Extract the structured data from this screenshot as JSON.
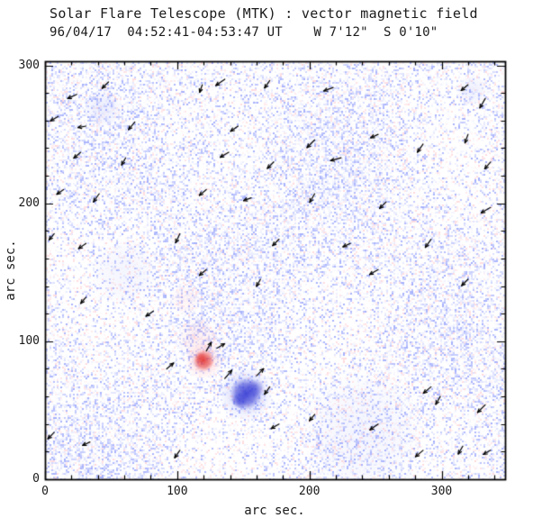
{
  "title": "Solar Flare Telescope (MTK) : vector magnetic field",
  "subtitle": "96/04/17  04:52:41-04:53:47 UT    W 7'12\"  S 0'10\"",
  "chart_data": {
    "type": "heatmap",
    "title": "Solar Flare Telescope (MTK) : vector magnetic field",
    "subtitle": "96/04/17  04:52:41-04:53:47 UT    W 7'12\"  S 0'10\"",
    "xlabel": "arc sec.",
    "ylabel": "arc sec.",
    "xlim": [
      0,
      348
    ],
    "ylim": [
      0,
      303
    ],
    "xticks": [
      0,
      100,
      200,
      300
    ],
    "yticks": [
      0,
      100,
      200,
      300
    ],
    "minor_tick_step": 20,
    "grid": false,
    "legend": "none",
    "colors": {
      "background": "#ffffff",
      "frame": "#000000",
      "text": "#1a1a1a",
      "vector": "#000000",
      "positive": "#e13230",
      "negative": "#3237d2",
      "weak_positive": "#ff96a0",
      "weak_negative": "#7887f5",
      "noise_blue": "#5a6efa",
      "noise_red": "#ff828c"
    },
    "noise": {
      "seed": 19960417,
      "blue_fraction": 0.42,
      "red_fraction": 0.11
    },
    "features": [
      {
        "name": "positive-spot-halo",
        "x": 120,
        "y": 86,
        "r": 14,
        "key": "weak_positive",
        "a": 0.3
      },
      {
        "name": "positive-spot-core",
        "x": 120,
        "y": 86,
        "r": 8,
        "key": "positive",
        "a": 0.85
      },
      {
        "name": "positive-spot-knot",
        "x": 118,
        "y": 88,
        "r": 4,
        "key": "positive",
        "a": 0.5
      },
      {
        "name": "faint-plage",
        "x": 116,
        "y": 102,
        "r": 16,
        "key": "weak_positive",
        "a": 0.15
      },
      {
        "name": "faint-plage-2",
        "x": 106,
        "y": 130,
        "r": 12,
        "key": "weak_positive",
        "a": 0.1
      },
      {
        "name": "negative-spot-halo",
        "x": 152,
        "y": 62,
        "r": 20,
        "key": "weak_negative",
        "a": 0.3
      },
      {
        "name": "negative-spot-core",
        "x": 152,
        "y": 62,
        "r": 12,
        "key": "negative",
        "a": 0.9
      },
      {
        "name": "negative-spot-knot-1",
        "x": 147,
        "y": 57,
        "r": 6,
        "key": "negative",
        "a": 0.5
      },
      {
        "name": "negative-spot-knot-2",
        "x": 159,
        "y": 66,
        "r": 7,
        "key": "negative",
        "a": 0.45
      },
      {
        "name": "faint-network-1",
        "x": 44,
        "y": 269,
        "r": 14,
        "key": "weak_negative",
        "a": 0.15
      },
      {
        "name": "faint-network-2",
        "x": 323,
        "y": 282,
        "r": 12,
        "key": "weak_negative",
        "a": 0.12
      },
      {
        "name": "faint-network-3",
        "x": 240,
        "y": 35,
        "r": 45,
        "key": "weak_negative",
        "a": 0.08
      },
      {
        "name": "faint-network-4",
        "x": 60,
        "y": 150,
        "r": 25,
        "key": "weak_negative",
        "a": 0.08
      }
    ],
    "vectors": [
      {
        "x": 24,
        "y": 279,
        "a": 205,
        "l": 11
      },
      {
        "x": 48,
        "y": 288,
        "a": 225,
        "l": 10
      },
      {
        "x": 119,
        "y": 286,
        "a": 250,
        "l": 9
      },
      {
        "x": 136,
        "y": 290,
        "a": 215,
        "l": 12
      },
      {
        "x": 170,
        "y": 289,
        "a": 235,
        "l": 10
      },
      {
        "x": 218,
        "y": 284,
        "a": 200,
        "l": 11
      },
      {
        "x": 320,
        "y": 286,
        "a": 220,
        "l": 10
      },
      {
        "x": 333,
        "y": 276,
        "a": 240,
        "l": 12
      },
      {
        "x": 10,
        "y": 263,
        "a": 210,
        "l": 10
      },
      {
        "x": 31,
        "y": 256,
        "a": 190,
        "l": 9
      },
      {
        "x": 68,
        "y": 259,
        "a": 230,
        "l": 11
      },
      {
        "x": 146,
        "y": 256,
        "a": 215,
        "l": 10
      },
      {
        "x": 204,
        "y": 246,
        "a": 225,
        "l": 12
      },
      {
        "x": 252,
        "y": 250,
        "a": 205,
        "l": 9
      },
      {
        "x": 286,
        "y": 243,
        "a": 235,
        "l": 11
      },
      {
        "x": 320,
        "y": 250,
        "a": 250,
        "l": 10
      },
      {
        "x": 27,
        "y": 237,
        "a": 220,
        "l": 10
      },
      {
        "x": 61,
        "y": 233,
        "a": 240,
        "l": 9
      },
      {
        "x": 139,
        "y": 237,
        "a": 210,
        "l": 11
      },
      {
        "x": 173,
        "y": 230,
        "a": 225,
        "l": 10
      },
      {
        "x": 224,
        "y": 233,
        "a": 195,
        "l": 12
      },
      {
        "x": 337,
        "y": 230,
        "a": 230,
        "l": 10
      },
      {
        "x": 14,
        "y": 210,
        "a": 215,
        "l": 9
      },
      {
        "x": 41,
        "y": 207,
        "a": 235,
        "l": 11
      },
      {
        "x": 122,
        "y": 210,
        "a": 220,
        "l": 10
      },
      {
        "x": 156,
        "y": 204,
        "a": 200,
        "l": 9
      },
      {
        "x": 204,
        "y": 207,
        "a": 240,
        "l": 11
      },
      {
        "x": 258,
        "y": 201,
        "a": 225,
        "l": 10
      },
      {
        "x": 337,
        "y": 197,
        "a": 210,
        "l": 12
      },
      {
        "x": 7,
        "y": 178,
        "a": 230,
        "l": 9
      },
      {
        "x": 31,
        "y": 171,
        "a": 215,
        "l": 10
      },
      {
        "x": 102,
        "y": 178,
        "a": 245,
        "l": 11
      },
      {
        "x": 177,
        "y": 174,
        "a": 225,
        "l": 10
      },
      {
        "x": 231,
        "y": 171,
        "a": 205,
        "l": 9
      },
      {
        "x": 292,
        "y": 174,
        "a": 235,
        "l": 11
      },
      {
        "x": 122,
        "y": 152,
        "a": 220,
        "l": 10
      },
      {
        "x": 163,
        "y": 145,
        "a": 240,
        "l": 9
      },
      {
        "x": 252,
        "y": 152,
        "a": 210,
        "l": 11
      },
      {
        "x": 320,
        "y": 145,
        "a": 225,
        "l": 10
      },
      {
        "x": 31,
        "y": 132,
        "a": 230,
        "l": 9
      },
      {
        "x": 82,
        "y": 122,
        "a": 215,
        "l": 10
      },
      {
        "x": 122,
        "y": 93,
        "a": 60,
        "l": 11
      },
      {
        "x": 130,
        "y": 95,
        "a": 30,
        "l": 10
      },
      {
        "x": 92,
        "y": 80,
        "a": 40,
        "l": 10
      },
      {
        "x": 136,
        "y": 73,
        "a": 50,
        "l": 12
      },
      {
        "x": 160,
        "y": 75,
        "a": 45,
        "l": 11
      },
      {
        "x": 170,
        "y": 67,
        "a": 235,
        "l": 10
      },
      {
        "x": 292,
        "y": 67,
        "a": 220,
        "l": 11
      },
      {
        "x": 299,
        "y": 60,
        "a": 240,
        "l": 10
      },
      {
        "x": 333,
        "y": 54,
        "a": 225,
        "l": 12
      },
      {
        "x": 177,
        "y": 40,
        "a": 210,
        "l": 10
      },
      {
        "x": 204,
        "y": 47,
        "a": 230,
        "l": 9
      },
      {
        "x": 252,
        "y": 40,
        "a": 215,
        "l": 11
      },
      {
        "x": 7,
        "y": 34,
        "a": 225,
        "l": 10
      },
      {
        "x": 34,
        "y": 27,
        "a": 205,
        "l": 9
      },
      {
        "x": 102,
        "y": 21,
        "a": 235,
        "l": 10
      },
      {
        "x": 286,
        "y": 21,
        "a": 220,
        "l": 11
      },
      {
        "x": 316,
        "y": 24,
        "a": 240,
        "l": 10
      },
      {
        "x": 337,
        "y": 21,
        "a": 210,
        "l": 9
      }
    ]
  }
}
